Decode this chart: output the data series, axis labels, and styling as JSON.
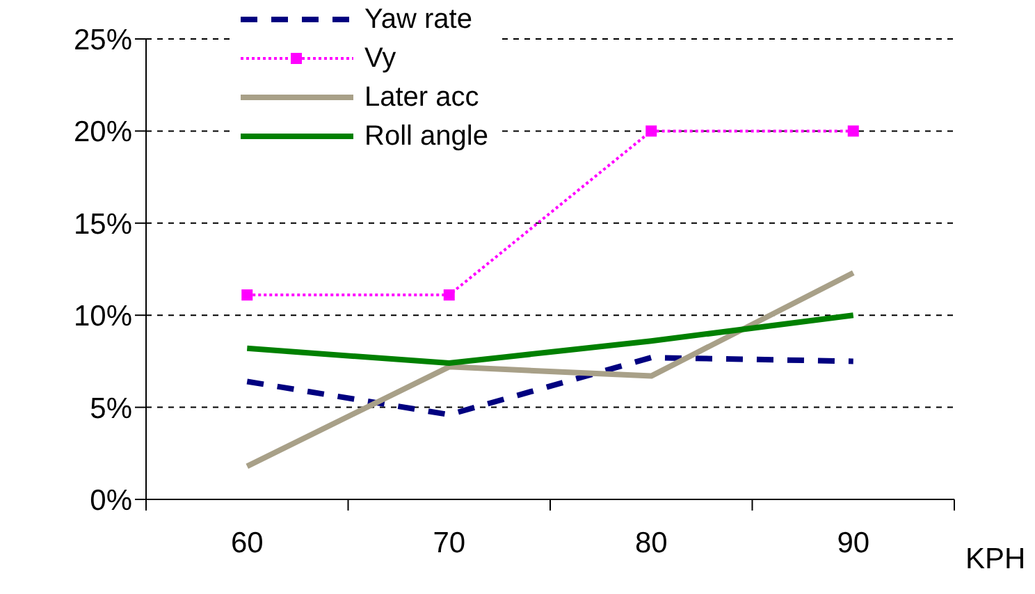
{
  "chart_data": {
    "type": "line",
    "xlabel": "KPH",
    "categories": [
      "60",
      "70",
      "80",
      "90"
    ],
    "series": [
      {
        "name": "Yaw rate",
        "color": "#000080",
        "line_style": "dashed",
        "marker": "none",
        "values": [
          6.4,
          4.6,
          7.7,
          7.5
        ]
      },
      {
        "name": "Vy",
        "color": "#ff00ff",
        "line_style": "dotted",
        "marker": "square",
        "values": [
          11.1,
          11.1,
          20,
          20
        ]
      },
      {
        "name": "Later acc",
        "color": "#a8a088",
        "line_style": "solid",
        "marker": "none",
        "values": [
          1.8,
          7.2,
          6.7,
          12.3
        ]
      },
      {
        "name": "Roll angle",
        "color": "#008000",
        "line_style": "solid",
        "marker": "none",
        "values": [
          8.2,
          7.4,
          8.6,
          10.0
        ]
      }
    ],
    "ylim": [
      0,
      25
    ],
    "yticks": [
      {
        "value": 0,
        "label": "0%"
      },
      {
        "value": 5,
        "label": "5%"
      },
      {
        "value": 10,
        "label": "10%"
      },
      {
        "value": 15,
        "label": "15%"
      },
      {
        "value": 20,
        "label": "20%"
      },
      {
        "value": 25,
        "label": "25%"
      }
    ],
    "grid": "y",
    "legend": "top left"
  }
}
